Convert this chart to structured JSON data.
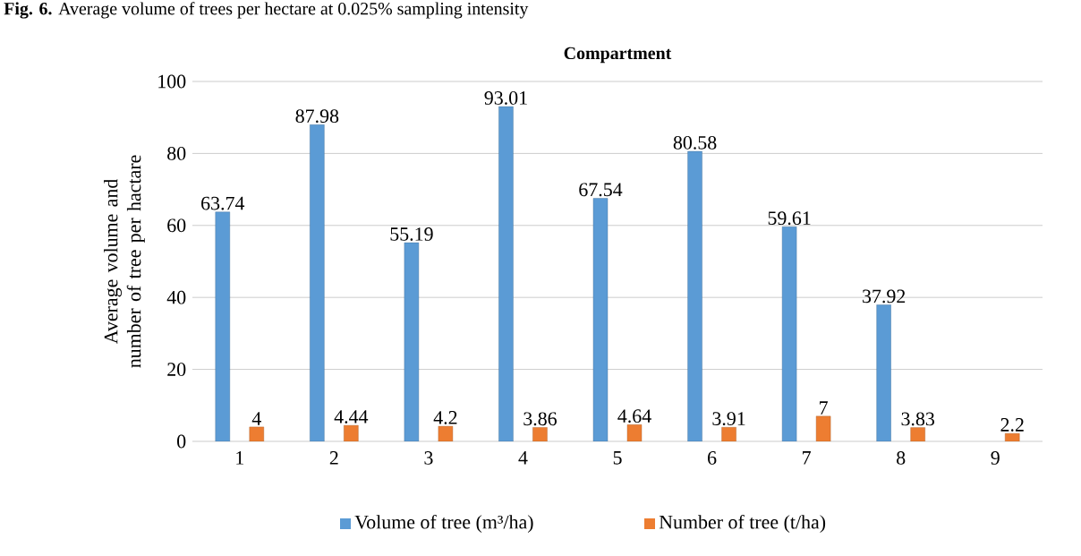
{
  "chart_data": {
    "type": "bar",
    "title": "Compartment",
    "ylabel": "Average volume and number of tree per hactare",
    "annotations": [
      "**Fig. 6.** Average volume of trees per hectare at 0.025% sampling intensity"
    ],
    "categories": [
      "1",
      "2",
      "3",
      "4",
      "5",
      "6",
      "7",
      "8",
      "9"
    ],
    "series": [
      {
        "name": "Volume of tree (m³/ha)",
        "color": "#5b9bd5",
        "values": [
          63.74,
          87.98,
          55.19,
          93.01,
          67.54,
          80.58,
          59.61,
          37.92,
          null
        ]
      },
      {
        "name": "Number of tree (t/ha)",
        "color": "#ed7d31",
        "values": [
          4,
          4.44,
          4.2,
          3.86,
          4.64,
          3.91,
          7,
          3.83,
          2.2
        ]
      }
    ],
    "ylim": [
      0,
      100
    ],
    "yticks": [
      0,
      20,
      40,
      60,
      80,
      100
    ],
    "grid": "y",
    "legend": "bottom",
    "data_labels": true
  }
}
